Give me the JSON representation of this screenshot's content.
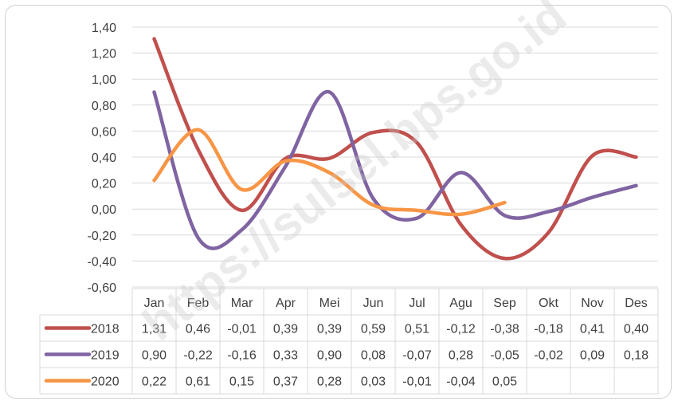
{
  "watermark": "https://sulsel.bps.go.id",
  "chart_data": {
    "type": "line",
    "categories": [
      "Jan",
      "Feb",
      "Mar",
      "Apr",
      "Mei",
      "Jun",
      "Jul",
      "Agu",
      "Sep",
      "Okt",
      "Nov",
      "Des"
    ],
    "series": [
      {
        "name": "2018",
        "color": "#c0504d",
        "values": [
          1.31,
          0.46,
          -0.01,
          0.39,
          0.39,
          0.59,
          0.51,
          -0.12,
          -0.38,
          -0.18,
          0.41,
          0.4
        ],
        "labels": [
          "1,31",
          "0,46",
          "-0,01",
          "0,39",
          "0,39",
          "0,59",
          "0,51",
          "-0,12",
          "-0,38",
          "-0,18",
          "0,41",
          "0,40"
        ]
      },
      {
        "name": "2019",
        "color": "#8064a2",
        "values": [
          0.9,
          -0.22,
          -0.16,
          0.33,
          0.9,
          0.08,
          -0.07,
          0.28,
          -0.05,
          -0.02,
          0.09,
          0.18
        ],
        "labels": [
          "0,90",
          "-0,22",
          "-0,16",
          "0,33",
          "0,90",
          "0,08",
          "-0,07",
          "0,28",
          "-0,05",
          "-0,02",
          "0,09",
          "0,18"
        ]
      },
      {
        "name": "2020",
        "color": "#f79646",
        "values": [
          0.22,
          0.61,
          0.15,
          0.37,
          0.28,
          0.03,
          -0.01,
          -0.04,
          0.05,
          null,
          null,
          null
        ],
        "labels": [
          "0,22",
          "0,61",
          "0,15",
          "0,37",
          "0,28",
          "0,03",
          "-0,01",
          "-0,04",
          "0,05",
          "",
          "",
          ""
        ]
      }
    ],
    "ylim": [
      -0.6,
      1.4
    ],
    "yticks": [
      1.4,
      1.2,
      1.0,
      0.8,
      0.6,
      0.4,
      0.2,
      0.0,
      -0.2,
      -0.4,
      -0.6
    ],
    "ytick_labels": [
      "1,40",
      "1,20",
      "1,00",
      "0,80",
      "0,60",
      "0,40",
      "0,20",
      "0,00",
      "-0,20",
      "-0,40",
      "-0,60"
    ],
    "grid": true,
    "legend": "data-table"
  }
}
